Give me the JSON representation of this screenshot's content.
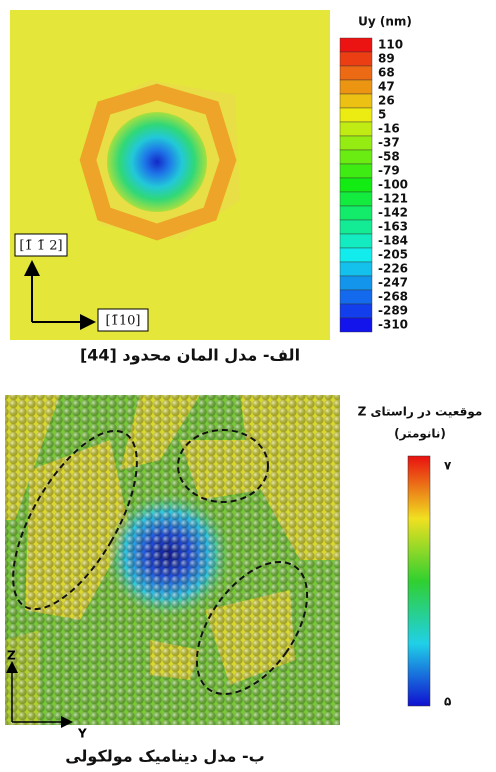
{
  "panel_a": {
    "colorbar_title": "Uy (nm)",
    "colorbar_labels": [
      110,
      89,
      68,
      47,
      26,
      5,
      -16,
      -37,
      -58,
      -79,
      -100,
      -121,
      -142,
      -163,
      -184,
      -205,
      -226,
      -247,
      -268,
      -289,
      -310
    ],
    "direction_up": "[1̄ 1̄ 2]",
    "direction_right": "[1̄10]",
    "caption": "الف- مدل المان محدود [44]"
  },
  "panel_b": {
    "colorbar_title": "موقعیت در راستای Z",
    "colorbar_unit": "(نانومتر)",
    "colorbar_max": "۷",
    "colorbar_min": "۵",
    "axis_z": "Z",
    "axis_y": "Y",
    "caption": "ب- مدل دینامیک مولکولی"
  }
}
